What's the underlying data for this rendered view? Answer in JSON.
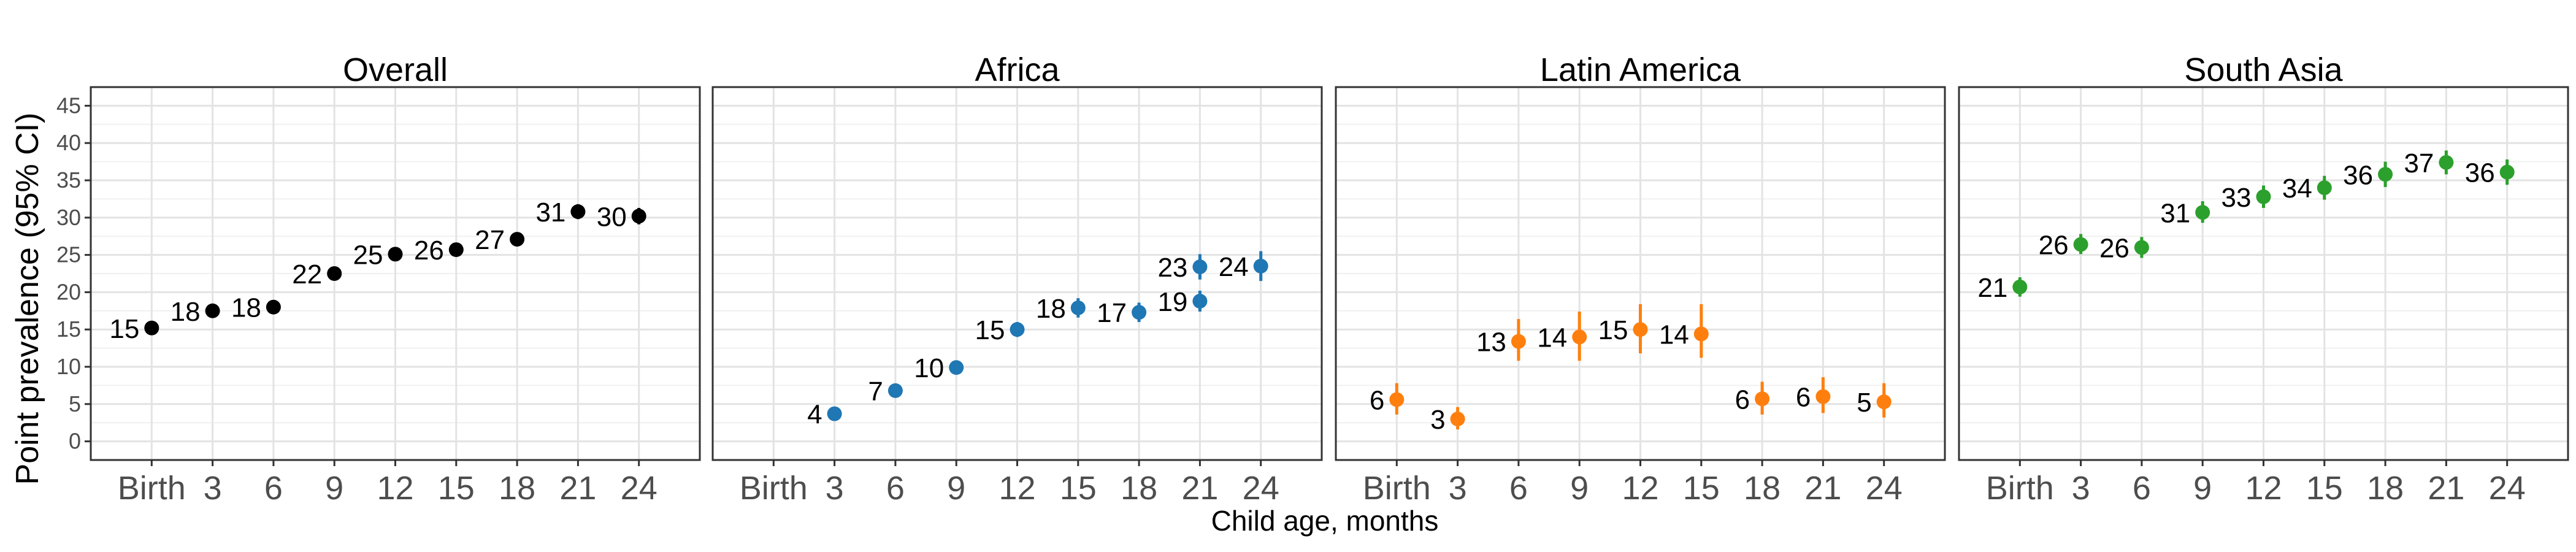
{
  "figure": {
    "ylabel": "Point prevalence (95% CI)",
    "xlabel": "Child age, months"
  },
  "chart_data": [
    {
      "type": "scatter",
      "title": "Overall",
      "color": "#000000",
      "x_ticks": [
        "Birth",
        "3",
        "6",
        "9",
        "12",
        "15",
        "18",
        "21",
        "24"
      ],
      "ylim": [
        -2.5,
        47.5
      ],
      "y_ticks": [
        0,
        5,
        10,
        15,
        20,
        25,
        30,
        35,
        40,
        45
      ],
      "grid": true,
      "points": [
        {
          "x": "Birth",
          "y": 15.2,
          "low": 14.5,
          "high": 16.0,
          "label": "15"
        },
        {
          "x": "3",
          "y": 17.5,
          "low": 16.8,
          "high": 18.2,
          "label": "18"
        },
        {
          "x": "6",
          "y": 18.0,
          "low": 17.2,
          "high": 18.8,
          "label": "18"
        },
        {
          "x": "9",
          "y": 22.5,
          "low": 21.7,
          "high": 23.3,
          "label": "22"
        },
        {
          "x": "12",
          "y": 25.1,
          "low": 24.3,
          "high": 25.9,
          "label": "25"
        },
        {
          "x": "15",
          "y": 25.7,
          "low": 24.9,
          "high": 26.5,
          "label": "26"
        },
        {
          "x": "18",
          "y": 27.1,
          "low": 26.2,
          "high": 28.0,
          "label": "27"
        },
        {
          "x": "21",
          "y": 30.8,
          "low": 29.8,
          "high": 31.8,
          "label": "31"
        },
        {
          "x": "24",
          "y": 30.2,
          "low": 29.1,
          "high": 31.3,
          "label": "30"
        }
      ]
    },
    {
      "type": "scatter",
      "title": "Africa",
      "color": "#1F77B4",
      "x_ticks": [
        "Birth",
        "3",
        "6",
        "9",
        "12",
        "15",
        "18",
        "21",
        "24"
      ],
      "ylim": [
        -2.5,
        47.5
      ],
      "y_ticks": [
        0,
        5,
        10,
        15,
        20,
        25,
        30,
        35,
        40,
        45
      ],
      "grid": true,
      "points": [
        {
          "x": "3",
          "y": 3.7,
          "low": 3.2,
          "high": 4.2,
          "label": "4"
        },
        {
          "x": "6",
          "y": 6.8,
          "low": 6.0,
          "high": 7.6,
          "label": "7"
        },
        {
          "x": "9",
          "y": 9.9,
          "low": 9.0,
          "high": 10.8,
          "label": "10"
        },
        {
          "x": "12",
          "y": 15.0,
          "low": 14.0,
          "high": 16.0,
          "label": "15"
        },
        {
          "x": "15",
          "y": 17.9,
          "low": 16.6,
          "high": 19.2,
          "label": "18"
        },
        {
          "x": "18",
          "y": 17.3,
          "low": 16.0,
          "high": 18.6,
          "label": "17"
        },
        {
          "x": "21",
          "y": 18.8,
          "low": 17.4,
          "high": 20.2,
          "label": "19"
        },
        {
          "x": "24",
          "y": 23.4,
          "low": 21.7,
          "high": 25.1,
          "label": "23"
        },
        {
          "x": "24",
          "y": 23.5,
          "low": 21.5,
          "high": 25.5,
          "label": "24"
        }
      ]
    },
    {
      "type": "scatter",
      "title": "Latin America",
      "color": "#FF7F0E",
      "x_ticks": [
        "Birth",
        "3",
        "6",
        "9",
        "12",
        "15",
        "18",
        "21",
        "24"
      ],
      "ylim": [
        -2.5,
        47.5
      ],
      "y_ticks": [
        0,
        5,
        10,
        15,
        20,
        25,
        30,
        35,
        40,
        45
      ],
      "grid": true,
      "points": [
        {
          "x": "Birth",
          "y": 5.6,
          "low": 3.6,
          "high": 7.8,
          "label": "6"
        },
        {
          "x": "3",
          "y": 3.0,
          "low": 1.6,
          "high": 4.6,
          "label": "3"
        },
        {
          "x": "6",
          "y": 13.4,
          "low": 10.8,
          "high": 16.4,
          "label": "13"
        },
        {
          "x": "9",
          "y": 14.0,
          "low": 10.8,
          "high": 17.4,
          "label": "14"
        },
        {
          "x": "12",
          "y": 15.0,
          "low": 11.8,
          "high": 18.4,
          "label": "15"
        },
        {
          "x": "15",
          "y": 14.4,
          "low": 11.2,
          "high": 18.4,
          "label": "14"
        },
        {
          "x": "18",
          "y": 5.7,
          "low": 3.6,
          "high": 8.0,
          "label": "6"
        },
        {
          "x": "21",
          "y": 6.0,
          "low": 3.8,
          "high": 8.6,
          "label": "6"
        },
        {
          "x": "24",
          "y": 5.3,
          "low": 3.2,
          "high": 7.8,
          "label": "5"
        }
      ]
    },
    {
      "type": "scatter",
      "title": "South Asia",
      "color": "#2CA02C",
      "x_ticks": [
        "Birth",
        "3",
        "6",
        "9",
        "12",
        "15",
        "18",
        "21",
        "24"
      ],
      "ylim": [
        -2.5,
        47.5
      ],
      "y_ticks": [
        0,
        5,
        10,
        15,
        20,
        25,
        30,
        35,
        40,
        45
      ],
      "grid": true,
      "points": [
        {
          "x": "Birth",
          "y": 20.7,
          "low": 19.4,
          "high": 22.0,
          "label": "21"
        },
        {
          "x": "3",
          "y": 26.4,
          "low": 25.1,
          "high": 27.8,
          "label": "26"
        },
        {
          "x": "6",
          "y": 26.0,
          "low": 24.6,
          "high": 27.4,
          "label": "26"
        },
        {
          "x": "9",
          "y": 30.7,
          "low": 29.3,
          "high": 32.2,
          "label": "31"
        },
        {
          "x": "12",
          "y": 32.8,
          "low": 31.3,
          "high": 34.3,
          "label": "33"
        },
        {
          "x": "15",
          "y": 34.0,
          "low": 32.4,
          "high": 35.6,
          "label": "34"
        },
        {
          "x": "18",
          "y": 35.8,
          "low": 34.1,
          "high": 37.5,
          "label": "36"
        },
        {
          "x": "21",
          "y": 37.4,
          "low": 35.8,
          "high": 39.0,
          "label": "37"
        },
        {
          "x": "24",
          "y": 36.1,
          "low": 34.4,
          "high": 37.8,
          "label": "36"
        }
      ]
    }
  ]
}
